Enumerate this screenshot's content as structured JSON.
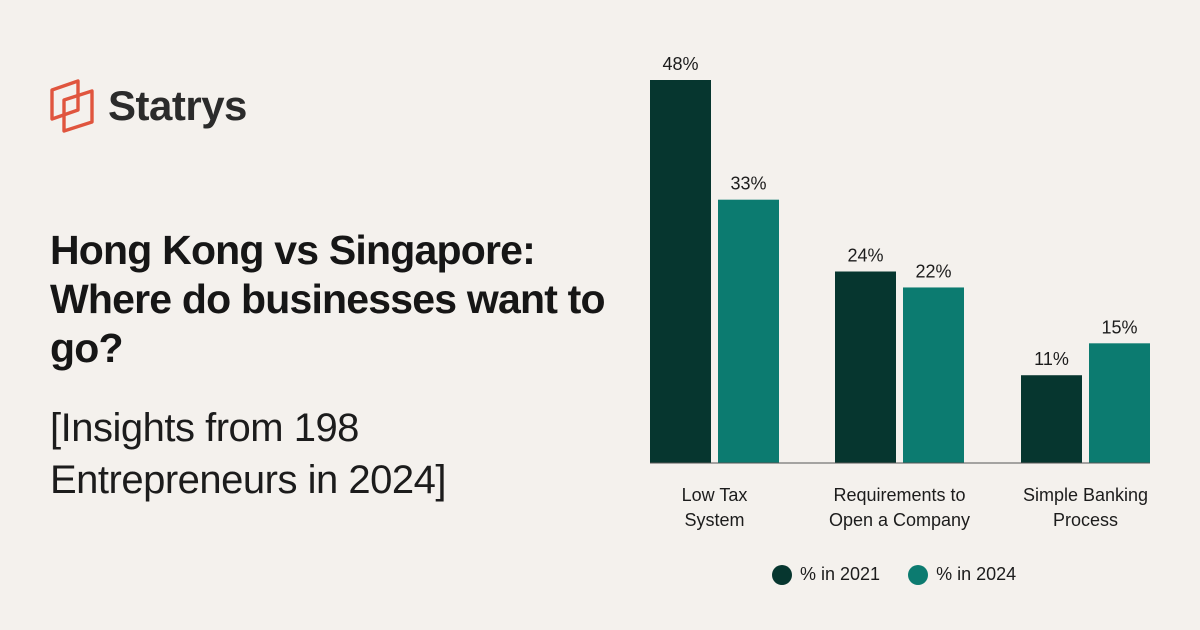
{
  "brand": {
    "name": "Statrys",
    "logo_color": "#e0553e"
  },
  "heading": {
    "title": "Hong Kong vs Singapore: Where do businesses want to go?",
    "subtitle": "[Insights from 198 Entrepreneurs in 2024]"
  },
  "colors": {
    "background": "#f4f1ed",
    "series_2021": "#06362f",
    "series_2024": "#0c7b70"
  },
  "chart_data": {
    "type": "bar",
    "categories": [
      [
        "Low Tax",
        "System"
      ],
      [
        "Requirements to",
        "Open a Company"
      ],
      [
        "Simple Banking",
        "Process"
      ]
    ],
    "series": [
      {
        "name": "% in 2021",
        "values": [
          48,
          24,
          11
        ],
        "labels": [
          "48%",
          "24%",
          "11%"
        ]
      },
      {
        "name": "% in 2024",
        "values": [
          33,
          22,
          15
        ],
        "labels": [
          "33%",
          "22%",
          "15%"
        ]
      }
    ],
    "ylim": [
      0,
      48
    ],
    "grid": false,
    "legend_position": "bottom"
  }
}
